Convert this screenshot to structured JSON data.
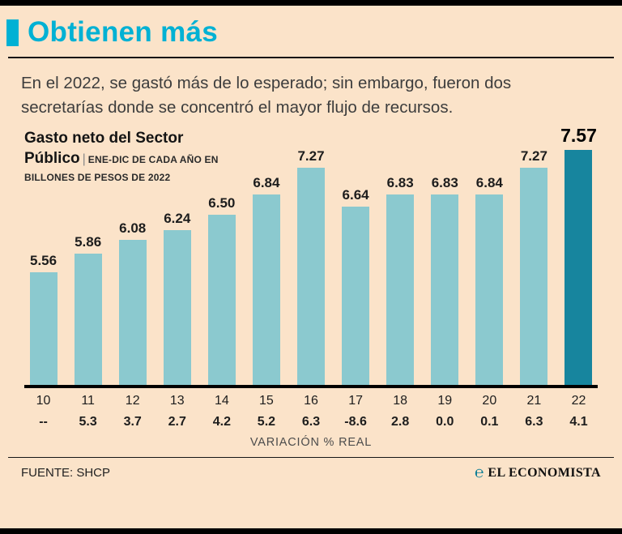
{
  "header": {
    "title": "Obtienen más",
    "accent_color": "#00b1d4"
  },
  "intro": {
    "text": "En el 2022, se gastó más de lo esperado; sin embargo, fueron dos secretarías donde se concentró el mayor flujo de recursos."
  },
  "chart_data": {
    "type": "bar",
    "title": "Gasto neto del Sector Público",
    "subtitle": "ENE-DIC DE CADA AÑO EN BILLONES DE PESOS DE 2022",
    "categories": [
      "10",
      "11",
      "12",
      "13",
      "14",
      "15",
      "16",
      "17",
      "18",
      "19",
      "20",
      "21",
      "22"
    ],
    "values": [
      5.56,
      5.86,
      6.08,
      6.24,
      6.5,
      6.84,
      7.27,
      6.64,
      6.83,
      6.83,
      6.84,
      7.27,
      7.57
    ],
    "variation": [
      "--",
      "5.3",
      "3.7",
      "2.7",
      "4.2",
      "5.2",
      "6.3",
      "-8.6",
      "2.8",
      "0.0",
      "0.1",
      "6.3",
      "4.1"
    ],
    "variation_label": "VARIACIÓN % REAL",
    "bar_color": "#8bc9cf",
    "highlight_color": "#17859e",
    "highlight_index": 12,
    "ylim": [
      3.7,
      7.8
    ],
    "grid": false,
    "legend": "none"
  },
  "footer": {
    "source": "FUENTE: SHCP",
    "brand": "EL ECONOMISTA"
  }
}
